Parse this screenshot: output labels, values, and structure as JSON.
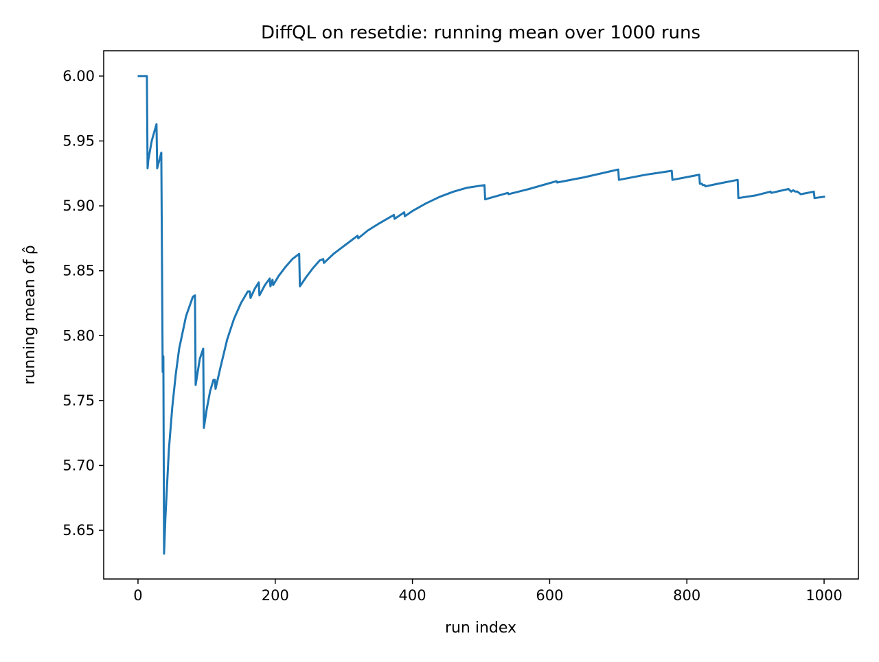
{
  "chart_data": {
    "type": "line",
    "title": "DiffQL on resetdie: running mean over 1000 runs",
    "xlabel": "run index",
    "ylabel": "running mean of ρ̂",
    "xlim": [
      -50,
      1050
    ],
    "ylim": [
      5.6125,
      6.0195
    ],
    "xticks": [
      0,
      200,
      400,
      600,
      800,
      1000
    ],
    "yticks": [
      5.65,
      5.7,
      5.75,
      5.8,
      5.85,
      5.9,
      5.95,
      6.0
    ],
    "xtick_labels": [
      "0",
      "200",
      "400",
      "600",
      "800",
      "1000"
    ],
    "ytick_labels": [
      "5.65",
      "5.70",
      "5.75",
      "5.80",
      "5.85",
      "5.90",
      "5.95",
      "6.00"
    ],
    "grid": false,
    "legend": "none",
    "series": [
      {
        "color": "#1f77b4",
        "x": [
          1,
          13,
          14,
          15,
          20,
          27,
          28,
          32,
          34,
          36,
          37,
          38,
          40,
          45,
          50,
          55,
          60,
          70,
          80,
          83,
          84,
          90,
          95,
          96,
          100,
          105,
          110,
          112,
          113,
          120,
          130,
          140,
          150,
          160,
          163,
          164,
          170,
          176,
          177,
          185,
          192,
          193,
          196,
          197,
          205,
          215,
          225,
          235,
          236,
          245,
          255,
          265,
          270,
          271,
          285,
          300,
          320,
          321,
          335,
          350,
          373,
          374,
          388,
          389,
          400,
          420,
          440,
          460,
          480,
          505,
          506,
          539,
          540,
          570,
          610,
          611,
          650,
          700,
          701,
          740,
          778,
          779,
          818,
          819,
          822,
          823,
          826,
          827,
          845,
          874,
          875,
          900,
          922,
          923,
          948,
          952,
          955,
          958,
          961,
          966,
          985,
          986,
          1000
        ],
        "y": [
          6.0,
          6.0,
          5.929,
          5.935,
          5.95,
          5.963,
          5.929,
          5.937,
          5.941,
          5.772,
          5.784,
          5.632,
          5.66,
          5.712,
          5.745,
          5.77,
          5.79,
          5.815,
          5.83,
          5.831,
          5.762,
          5.782,
          5.79,
          5.729,
          5.743,
          5.757,
          5.766,
          5.766,
          5.759,
          5.775,
          5.797,
          5.813,
          5.825,
          5.834,
          5.834,
          5.829,
          5.836,
          5.841,
          5.831,
          5.839,
          5.844,
          5.838,
          5.843,
          5.839,
          5.846,
          5.853,
          5.859,
          5.863,
          5.838,
          5.845,
          5.852,
          5.858,
          5.859,
          5.856,
          5.863,
          5.869,
          5.877,
          5.875,
          5.881,
          5.886,
          5.893,
          5.89,
          5.895,
          5.892,
          5.896,
          5.902,
          5.907,
          5.911,
          5.914,
          5.916,
          5.905,
          5.91,
          5.909,
          5.913,
          5.919,
          5.918,
          5.922,
          5.928,
          5.92,
          5.924,
          5.927,
          5.92,
          5.924,
          5.917,
          5.917,
          5.916,
          5.916,
          5.915,
          5.917,
          5.92,
          5.906,
          5.908,
          5.911,
          5.91,
          5.913,
          5.911,
          5.912,
          5.911,
          5.911,
          5.909,
          5.911,
          5.906,
          5.907
        ]
      }
    ]
  }
}
